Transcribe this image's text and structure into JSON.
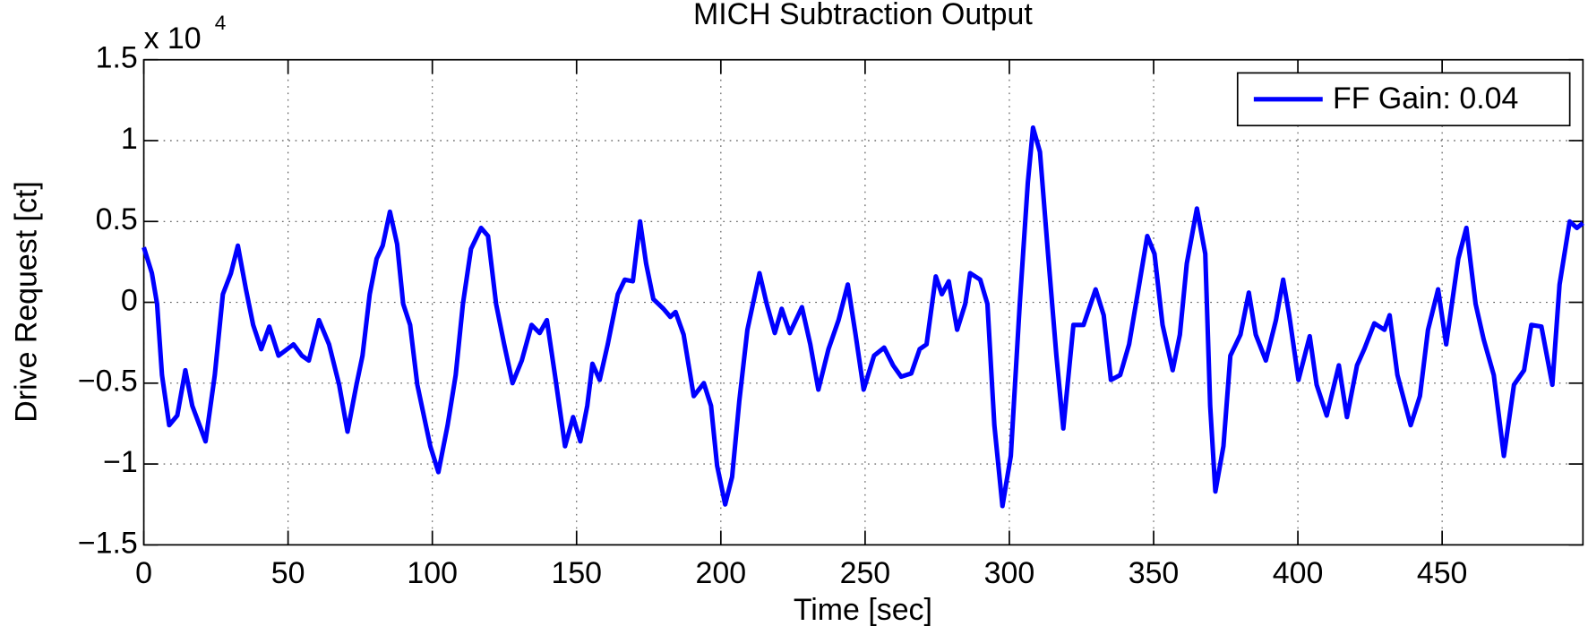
{
  "chart_data": {
    "type": "line",
    "title": "MICH Subtraction Output",
    "xlabel": "Time [sec]",
    "ylabel": "Drive Request [ct]",
    "y_multiplier": {
      "base": "x 10",
      "exponent": "4"
    },
    "xlim": [
      0,
      498.8
    ],
    "ylim": [
      -1.5,
      1.5
    ],
    "xticks": [
      0,
      50,
      100,
      150,
      200,
      250,
      300,
      350,
      400,
      450
    ],
    "yticks": [
      {
        "value": -1.5,
        "label": "−1.5"
      },
      {
        "value": -1,
        "label": "−1"
      },
      {
        "value": -0.5,
        "label": "−0.5"
      },
      0,
      0.5,
      1,
      1.5
    ],
    "grid": true,
    "legend": "upper right",
    "x": [
      0,
      2.8,
      4.6,
      6.3,
      8.8,
      11.6,
      14.4,
      16.8,
      21.4,
      24.6,
      27.4,
      30.2,
      32.6,
      35.4,
      37.9,
      40.7,
      43.5,
      46.7,
      51.9,
      54.8,
      57.2,
      60.7,
      64.2,
      67.7,
      70.6,
      73.7,
      75.8,
      78.3,
      80.7,
      82.8,
      85.3,
      87.8,
      89.9,
      92.3,
      94.8,
      99.3,
      102.1,
      105.3,
      108.1,
      110.6,
      113.4,
      116.9,
      119.3,
      122.1,
      124.9,
      127.8,
      131,
      134.4,
      137.2,
      139.7,
      142.5,
      146,
      148.8,
      151.3,
      153.7,
      155.5,
      158,
      160.8,
      164.3,
      166.7,
      169.5,
      172,
      174.1,
      176.6,
      180.1,
      182.5,
      184.3,
      187.1,
      190.6,
      194.1,
      196.6,
      198.7,
      201.5,
      203.9,
      206.4,
      209.2,
      213.4,
      215.9,
      218.7,
      221.1,
      223.9,
      228.1,
      231,
      233.8,
      237.3,
      240.8,
      244,
      246.7,
      249.5,
      253.1,
      256.6,
      259.7,
      262.5,
      266,
      268.9,
      271.3,
      274.5,
      276.6,
      279,
      281.9,
      284.7,
      286.4,
      289.9,
      292.4,
      294.8,
      297.6,
      300.5,
      303.6,
      306.4,
      308.2,
      310.6,
      313.4,
      316.3,
      318.7,
      322.2,
      325.7,
      329.9,
      332.7,
      335.2,
      338.4,
      341.5,
      345,
      347.8,
      350.3,
      353.1,
      356.6,
      359.1,
      361.5,
      365,
      367.9,
      369.6,
      371.4,
      374.2,
      376.6,
      380.1,
      383,
      385.4,
      388.9,
      392.4,
      394.9,
      397,
      400.2,
      404.1,
      406.5,
      410,
      414.2,
      417,
      420.5,
      423,
      426.5,
      430,
      431.8,
      434.5,
      439.1,
      442.3,
      445.1,
      448.6,
      451.4,
      455.6,
      458.4,
      461.6,
      464.4,
      467.9,
      471.4,
      474.9,
      478.4,
      480.9,
      484.4,
      488.2,
      490.7,
      494.2,
      496.7,
      498.8
    ],
    "series": [
      {
        "name": "FF Gain: 0.04",
        "color": "#0000ff",
        "values": [
          0.34,
          0.18,
          -0.01,
          -0.45,
          -0.76,
          -0.7,
          -0.42,
          -0.64,
          -0.86,
          -0.45,
          0.05,
          0.18,
          0.35,
          0.08,
          -0.14,
          -0.29,
          -0.15,
          -0.33,
          -0.26,
          -0.33,
          -0.36,
          -0.11,
          -0.26,
          -0.51,
          -0.8,
          -0.51,
          -0.33,
          0.05,
          0.27,
          0.35,
          0.56,
          0.36,
          -0.01,
          -0.14,
          -0.51,
          -0.89,
          -1.05,
          -0.76,
          -0.45,
          -0.01,
          0.33,
          0.46,
          0.41,
          -0.01,
          -0.26,
          -0.5,
          -0.36,
          -0.14,
          -0.19,
          -0.11,
          -0.45,
          -0.89,
          -0.71,
          -0.86,
          -0.64,
          -0.38,
          -0.48,
          -0.26,
          0.05,
          0.14,
          0.13,
          0.5,
          0.24,
          0.02,
          -0.04,
          -0.09,
          -0.06,
          -0.2,
          -0.58,
          -0.5,
          -0.64,
          -1.01,
          -1.25,
          -1.08,
          -0.61,
          -0.17,
          0.18,
          -0.01,
          -0.19,
          -0.04,
          -0.19,
          -0.03,
          -0.26,
          -0.54,
          -0.29,
          -0.11,
          0.11,
          -0.2,
          -0.54,
          -0.33,
          -0.28,
          -0.39,
          -0.46,
          -0.44,
          -0.29,
          -0.26,
          0.16,
          0.05,
          0.13,
          -0.17,
          -0.01,
          0.18,
          0.14,
          -0.01,
          -0.76,
          -1.26,
          -0.95,
          -0.01,
          0.74,
          1.08,
          0.93,
          0.3,
          -0.33,
          -0.78,
          -0.14,
          -0.14,
          0.08,
          -0.08,
          -0.48,
          -0.45,
          -0.26,
          0.11,
          0.41,
          0.3,
          -0.14,
          -0.42,
          -0.2,
          0.24,
          0.58,
          0.3,
          -0.64,
          -1.17,
          -0.89,
          -0.33,
          -0.2,
          0.06,
          -0.2,
          -0.36,
          -0.11,
          0.14,
          -0.08,
          -0.48,
          -0.21,
          -0.51,
          -0.7,
          -0.39,
          -0.71,
          -0.39,
          -0.29,
          -0.13,
          -0.17,
          -0.08,
          -0.45,
          -0.76,
          -0.58,
          -0.17,
          0.08,
          -0.26,
          0.27,
          0.46,
          -0.01,
          -0.23,
          -0.45,
          -0.95,
          -0.51,
          -0.42,
          -0.14,
          -0.15,
          -0.51,
          0.11,
          0.5,
          0.46,
          0.49
        ]
      }
    ]
  }
}
